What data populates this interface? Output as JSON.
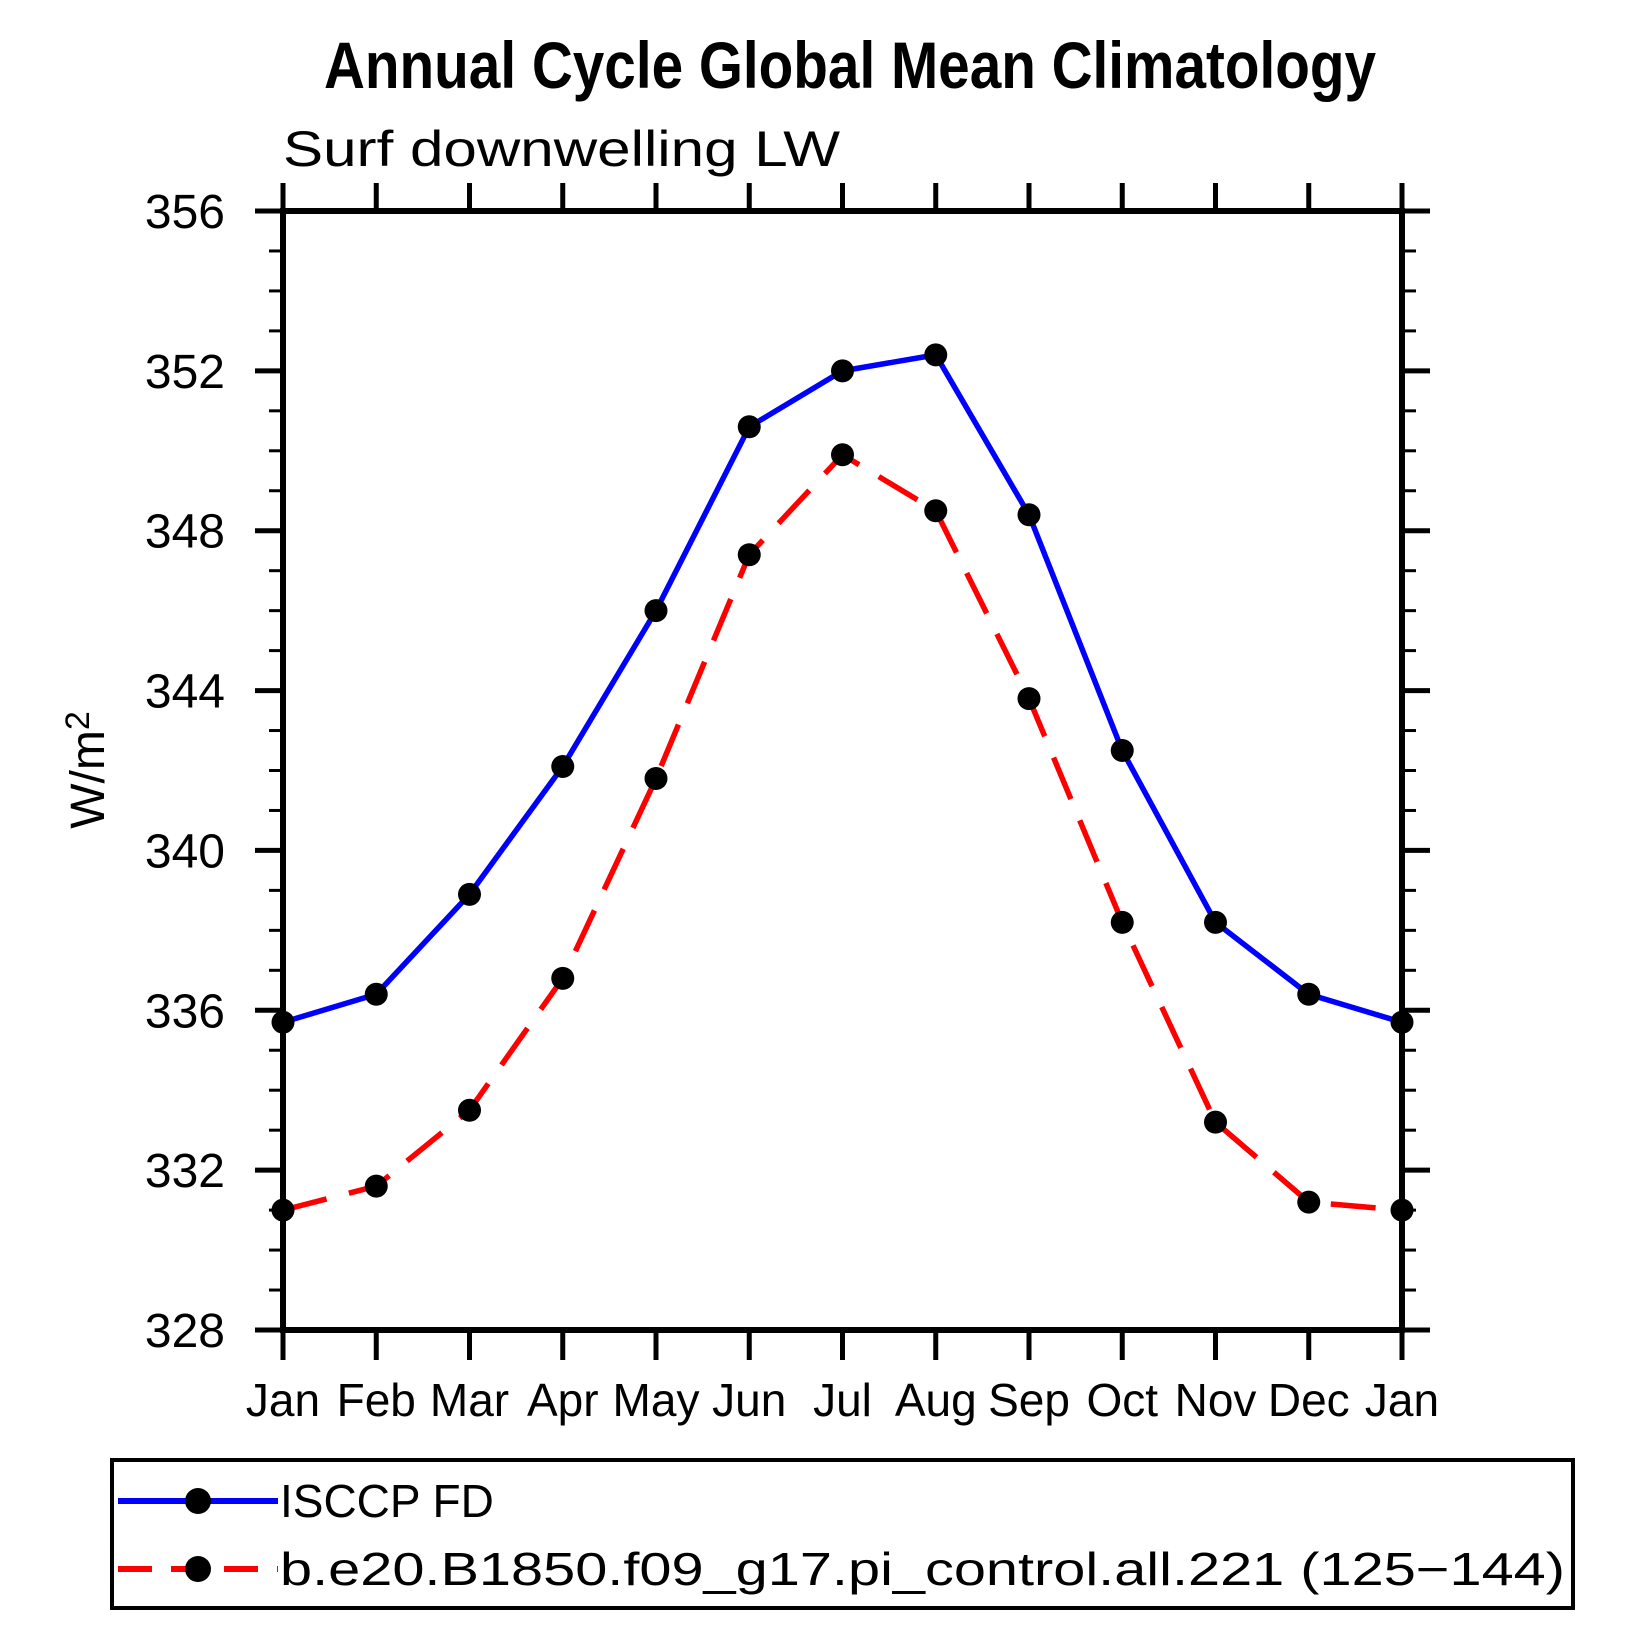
{
  "chart_data": {
    "type": "line",
    "title": "Annual Cycle Global Mean Climatology",
    "subtitle": "Surf downwelling LW",
    "ylabel": "W/m²",
    "ylabel_base": "W/m",
    "ylabel_sup": "2",
    "categories": [
      "Jan",
      "Feb",
      "Mar",
      "Apr",
      "May",
      "Jun",
      "Jul",
      "Aug",
      "Sep",
      "Oct",
      "Nov",
      "Dec",
      "Jan"
    ],
    "ylim": [
      328,
      356
    ],
    "ytick_major": [
      328,
      332,
      336,
      340,
      344,
      348,
      352,
      356
    ],
    "ytick_minor_step": 1,
    "grid": false,
    "legend_position": "bottom-left-box",
    "axis_color": "#000000",
    "marker_color": "#000000",
    "series": [
      {
        "name": "ISCCP FD",
        "color": "#0000ff",
        "line_style": "solid",
        "marker": "filled-circle",
        "values": [
          335.7,
          336.4,
          338.9,
          342.1,
          346.0,
          350.6,
          352.0,
          352.4,
          348.4,
          342.5,
          338.2,
          336.4,
          335.7
        ]
      },
      {
        "name": "b.e20.B1850.f09_g17.pi_control.all.221 (125−144)",
        "color": "#ff0000",
        "line_style": "dashed",
        "marker": "filled-circle",
        "values": [
          331.0,
          331.6,
          333.5,
          336.8,
          341.8,
          347.4,
          349.9,
          348.5,
          343.8,
          338.2,
          333.2,
          331.2,
          331.0
        ]
      }
    ]
  }
}
